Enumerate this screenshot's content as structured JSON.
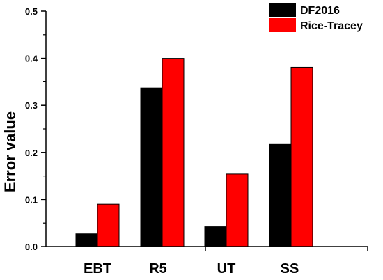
{
  "chart_data": {
    "type": "bar",
    "title": "",
    "xlabel": "",
    "ylabel": "Error value",
    "categories": [
      "EBT",
      "R5",
      "UT",
      "SS"
    ],
    "series": [
      {
        "name": "DF2016",
        "color": "#000000",
        "values": [
          0.027,
          0.337,
          0.042,
          0.217
        ]
      },
      {
        "name": "Rice-Tracey",
        "color": "#ff0000",
        "values": [
          0.09,
          0.4,
          0.154,
          0.381
        ]
      }
    ],
    "ylim": [
      0,
      0.5
    ],
    "yticks": [
      "0.0",
      "0.1",
      "0.2",
      "0.3",
      "0.4",
      "0.5"
    ],
    "grid": false,
    "legend_position": "top-right"
  }
}
